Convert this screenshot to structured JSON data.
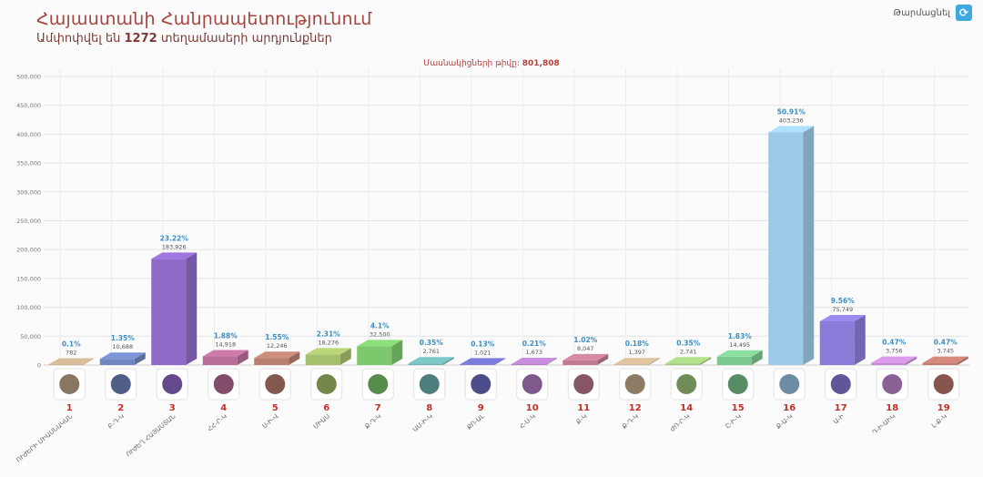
{
  "header": {
    "title": "Հայաստանի Հանրապետությունում",
    "subtitle_prefix": "Ամփոփվել են",
    "subtitle_count": "1272",
    "subtitle_suffix": "տեղամասերի արդյունքներ"
  },
  "refresh": {
    "label": "Թարմացնել",
    "icon": "refresh-icon"
  },
  "participants": {
    "label": "Մասնակիցների թիվը:",
    "value": "801,808"
  },
  "chart_data": {
    "type": "bar",
    "ylim": [
      0,
      500000
    ],
    "yticks": [
      "0",
      "50,000",
      "100,000",
      "150,000",
      "200,000",
      "250,000",
      "300,000",
      "350,000",
      "400,000",
      "450,000",
      "500,000"
    ],
    "grid": true,
    "categories": [
      "1",
      "2",
      "3",
      "4",
      "5",
      "6",
      "7",
      "8",
      "9",
      "10",
      "11",
      "12",
      "14",
      "15",
      "16",
      "17",
      "18",
      "19"
    ],
    "values": [
      782,
      10688,
      183926,
      14918,
      12246,
      18276,
      32500,
      2761,
      1021,
      1673,
      8047,
      1397,
      2741,
      14495,
      403236,
      75749,
      3756,
      3745
    ],
    "value_labels": [
      "782",
      "10,688",
      "183,926",
      "14,918",
      "12,246",
      "18,276",
      "32,500",
      "2,761",
      "1,021",
      "1,673",
      "8,047",
      "1,397",
      "2,741",
      "14,495",
      "403,236",
      "75,749",
      "3,756",
      "3,745"
    ],
    "percents": [
      "0.1%",
      "1.35%",
      "23.22%",
      "1.88%",
      "1.55%",
      "2.31%",
      "4.1%",
      "0.35%",
      "0.13%",
      "0.21%",
      "1.02%",
      "0.18%",
      "0.35%",
      "1.83%",
      "50.91%",
      "9.56%",
      "0.47%",
      "0.47%"
    ],
    "colors": [
      "#c4a98a",
      "#6f86bf",
      "#8f6ac9",
      "#b86e98",
      "#b97f6e",
      "#a6bf6c",
      "#7cc86c",
      "#6fb3b3",
      "#6e6ec8",
      "#b47fc7",
      "#c07b93",
      "#c9b08e",
      "#a0c87c",
      "#7cc890",
      "#9ccae8",
      "#8b7bd8",
      "#c48ad4",
      "#c07a6e"
    ],
    "party_names": [
      "ՈՒԺԵՐԻ ՄԻԱՍՆԱԿԱՆ",
      "Բ-Դ-Կ",
      "ՈՒԺԵՂ ՀԱՅԱՍՏԱՆ",
      "ՀՀ-Ր-Կ",
      "Ս-Ի-Վ",
      "ՄԻԱՍ",
      "Ք-Դ-Կ",
      "ԱՄ-Ի-Կ",
      "ՔՈ-ԱԼ",
      "Հ-Ս-Կ",
      "Ք-Կ",
      "Ք-Դ-Կ",
      "ԺՈ-Ր-Կ",
      "Ը-Ի-Կ",
      "Ք-Ա-Կ",
      "Ա-Ի",
      "Դ-Ի-ԱԻԿ",
      "Լ-Ք-Կ"
    ]
  }
}
